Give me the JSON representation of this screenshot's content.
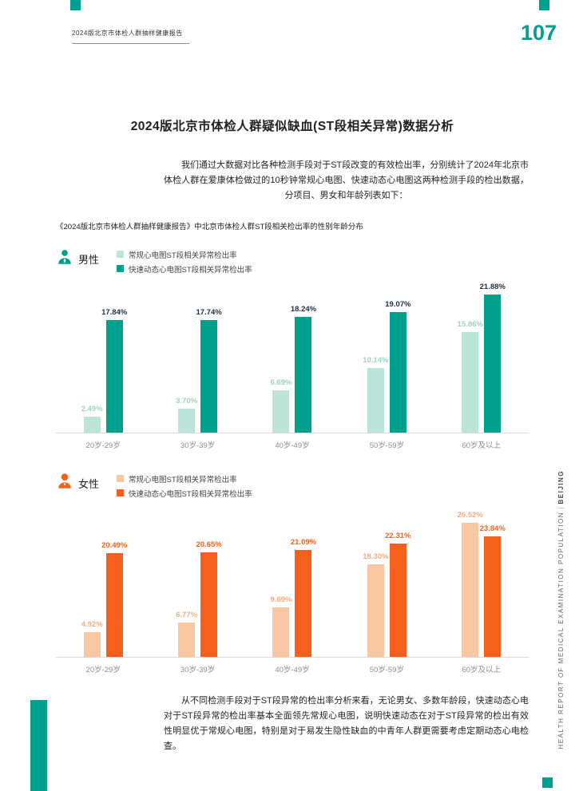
{
  "page": {
    "header_left": "2024版北京市体检人群抽样健康报告",
    "page_number": "107",
    "title": "2024版北京市体检人群疑似缺血(ST段相关异常)数据分析",
    "intro": "我们通过大数据对比各种检测手段对于ST段改变的有效检出率，分别统计了2024年北京市体检人群在爱康体检做过的10秒钟常规心电图、快速动态心电图这两种检测手段的检出数据，分项目、男女和年龄列表如下：",
    "chart_caption": "《2024版北京市体检人群抽样健康报告》中北京市体检人群ST段相关检出率的性别年龄分布",
    "conclusion": "从不同检测手段对于ST段异常的检出率分析来看，无论男女、多数年龄段，快速动态心电对于ST段异常的检出率基本全面领先常规心电图，说明快速动态在对于ST段异常的检出有效性明显优于常规心电图，特别是对于易发生隐性缺血的中青年人群更需要考虑定期动态心电检查。",
    "side_text": "HEALTH REPORT OF MEDICAL EXAMINATION POPULATION",
    "side_text_separator": "｜",
    "side_text_bold": "BEIJING"
  },
  "colors": {
    "teal": "#00a08f",
    "light_teal": "#bde4d8",
    "orange": "#f4611c",
    "light_orange": "#f9c7a2",
    "dark_value_label": "#233142"
  },
  "chart_data": [
    {
      "type": "bar",
      "group_label": "男性",
      "categories": [
        "20岁-29岁",
        "30岁-39岁",
        "40岁-49岁",
        "50岁-59岁",
        "60岁及以上"
      ],
      "series": [
        {
          "name": "常规心电图ST段相关异常检出率",
          "color": "#bde4d8",
          "label_color": "#9fd3c2",
          "values": [
            2.49,
            3.7,
            6.69,
            10.14,
            15.86
          ]
        },
        {
          "name": "快速动态心电图ST段相关异常检出率",
          "color": "#00a08f",
          "label_color": "#233142",
          "values": [
            17.84,
            17.74,
            18.24,
            19.07,
            21.88
          ]
        }
      ],
      "ylim": [
        0,
        24
      ],
      "value_suffix": "%",
      "grid": false,
      "legend_position": "top-left"
    },
    {
      "type": "bar",
      "group_label": "女性",
      "categories": [
        "20岁-29岁",
        "30岁-39岁",
        "40岁-49岁",
        "50岁-59岁",
        "60岁及以上"
      ],
      "series": [
        {
          "name": "常规心电图ST段相关异常检出率",
          "color": "#f9c7a2",
          "label_color": "#f5ab7e",
          "values": [
            4.92,
            6.77,
            9.69,
            18.3,
            26.52
          ]
        },
        {
          "name": "快速动态心电图ST段相关异常检出率",
          "color": "#f4611c",
          "label_color": "#f4611c",
          "values": [
            20.49,
            20.65,
            21.09,
            22.31,
            23.84
          ]
        }
      ],
      "ylim": [
        0,
        30
      ],
      "value_suffix": "%",
      "grid": false,
      "legend_position": "top-left"
    }
  ]
}
